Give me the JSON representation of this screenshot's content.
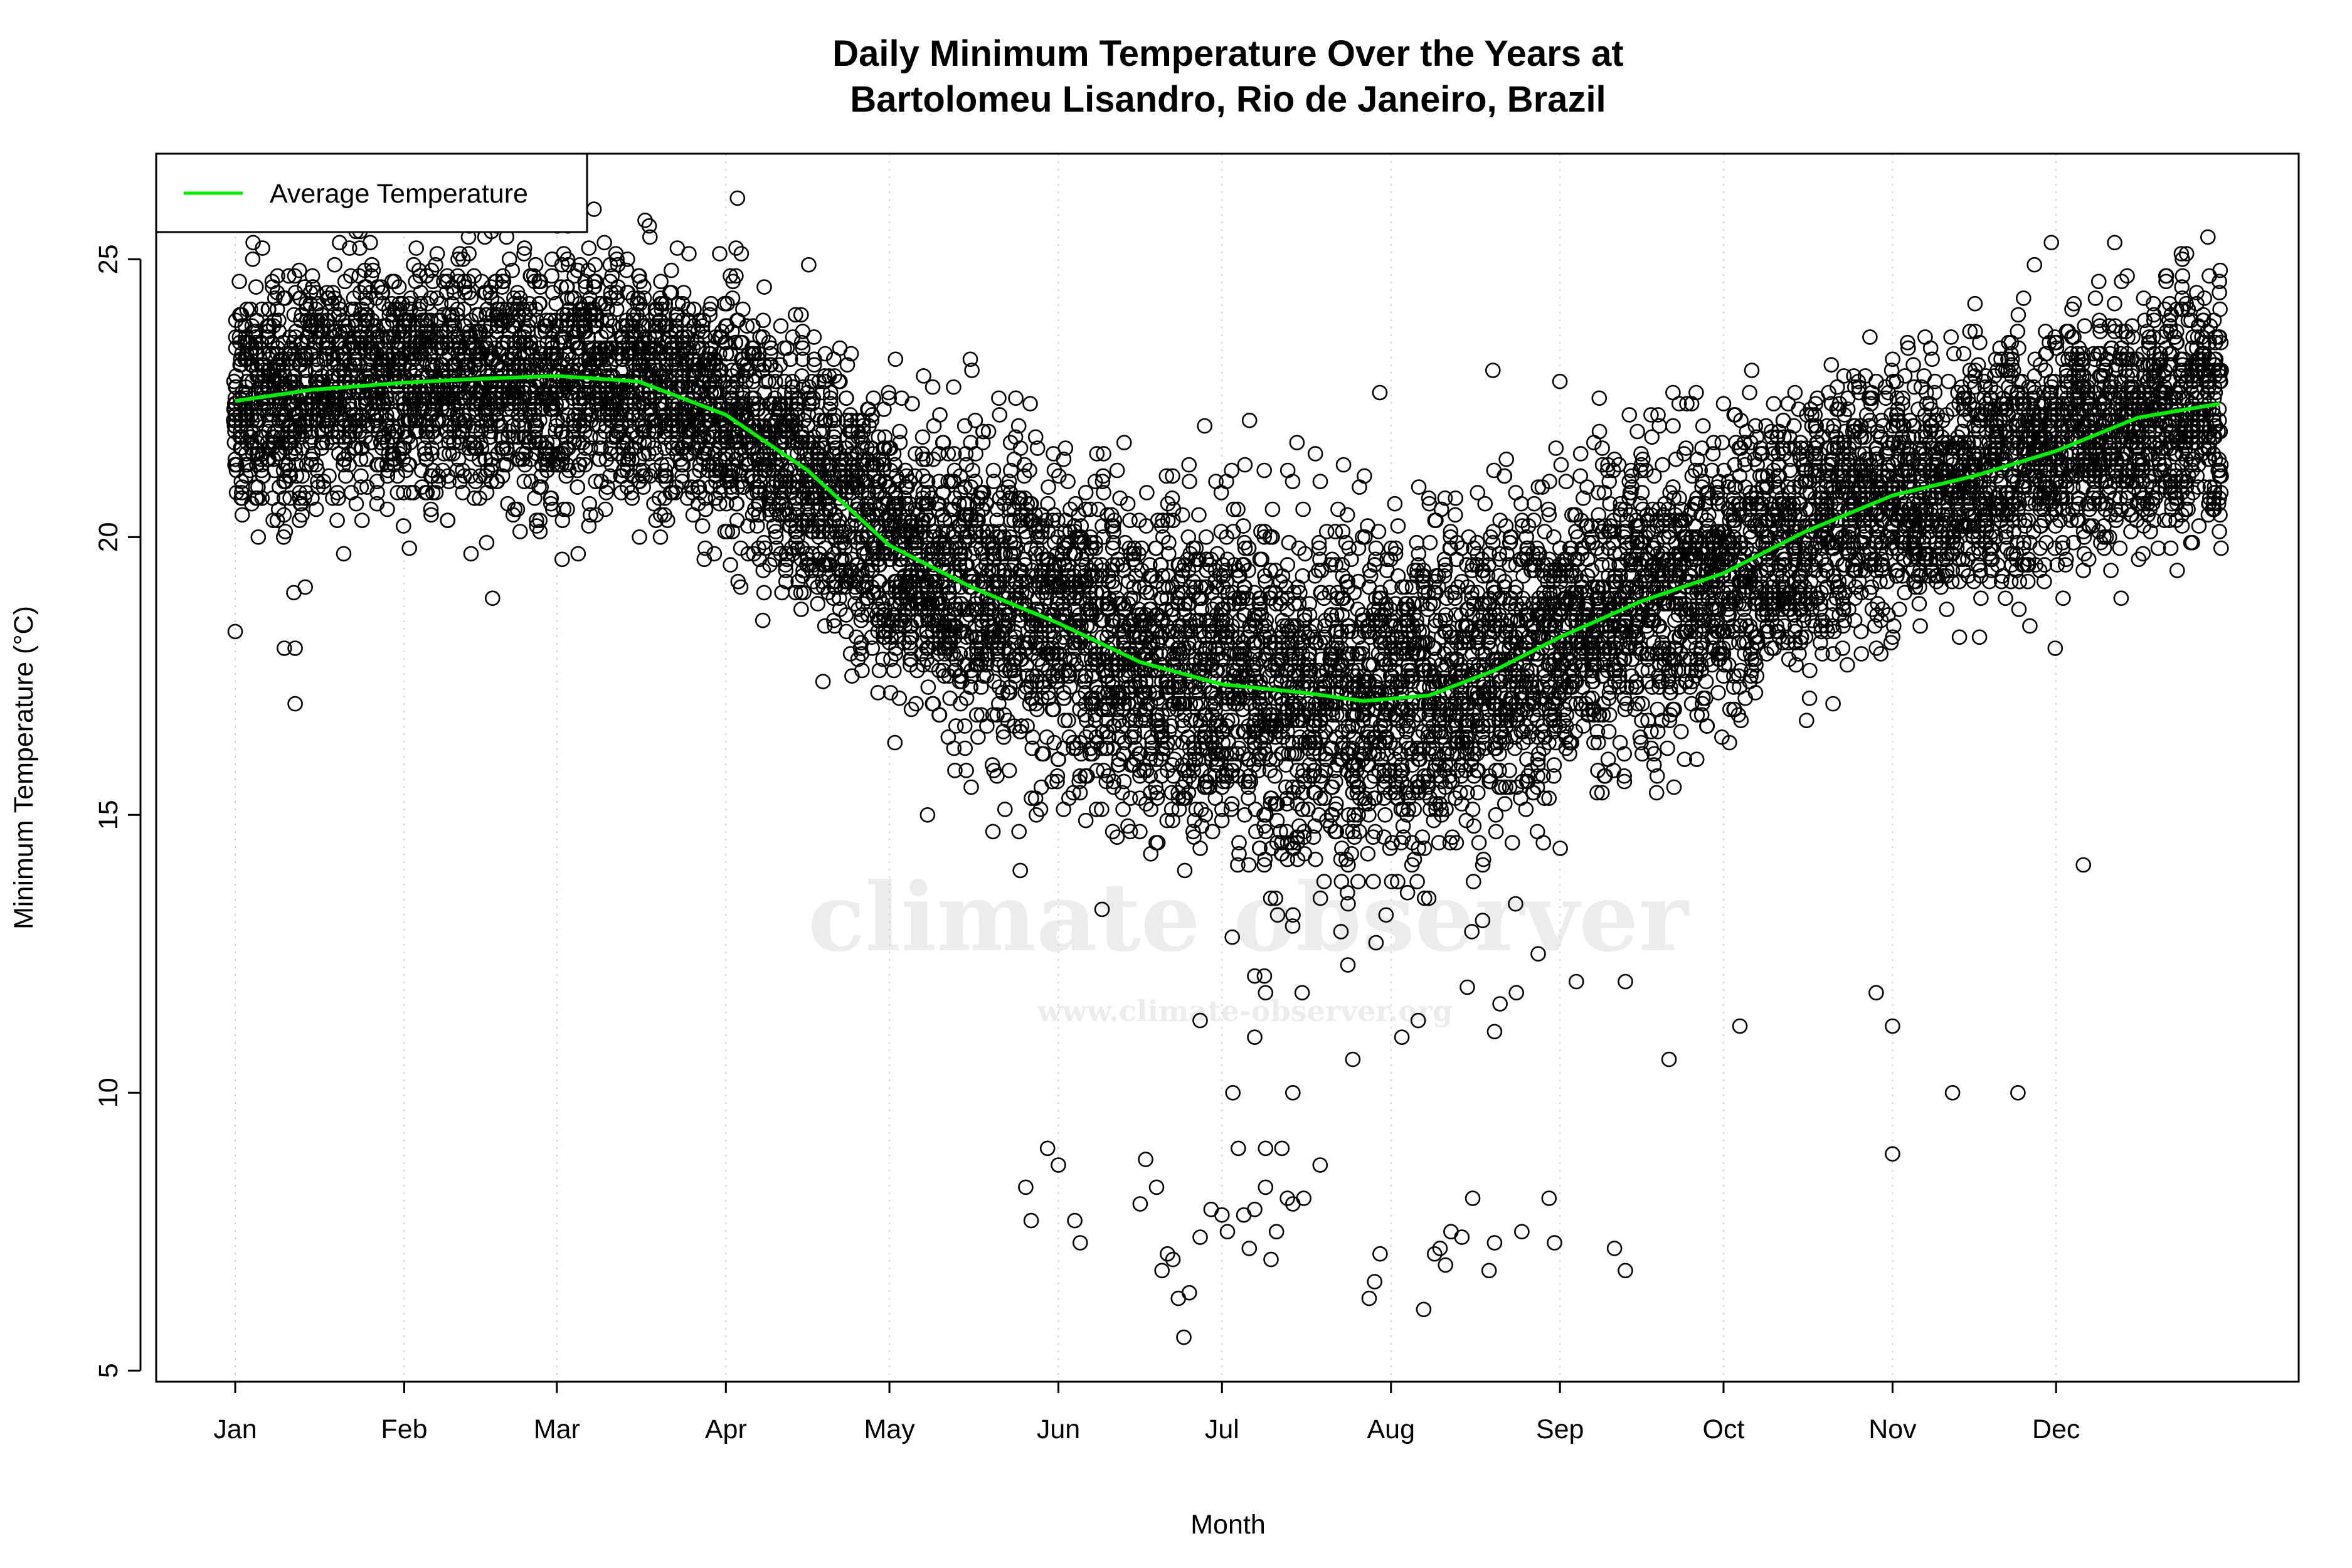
{
  "chart_data": {
    "type": "scatter",
    "title_line1": "Daily Minimum Temperature Over the Years at",
    "title_line2": "Bartolomeu Lisandro, Rio de Janeiro, Brazil",
    "xlabel": "Month",
    "ylabel": "Minimum Temperature (°C)",
    "x_ticks": [
      {
        "label": "Jan",
        "day": 1
      },
      {
        "label": "Feb",
        "day": 32
      },
      {
        "label": "Mar",
        "day": 60
      },
      {
        "label": "Apr",
        "day": 91
      },
      {
        "label": "May",
        "day": 121
      },
      {
        "label": "Jun",
        "day": 152
      },
      {
        "label": "Jul",
        "day": 182
      },
      {
        "label": "Aug",
        "day": 213
      },
      {
        "label": "Sep",
        "day": 244
      },
      {
        "label": "Oct",
        "day": 274
      },
      {
        "label": "Nov",
        "day": 305
      },
      {
        "label": "Dec",
        "day": 335
      }
    ],
    "y_ticks": [
      5,
      10,
      15,
      20,
      25
    ],
    "xlim": [
      -13.5,
      379.5
    ],
    "ylim": [
      4.8,
      26.9
    ],
    "grid": "vertical dotted at month ticks",
    "legend": {
      "placement": "top-left",
      "entries": [
        {
          "label": "Average Temperature",
          "color": "#00ee00"
        }
      ]
    },
    "series": [
      {
        "name": "Average Temperature",
        "kind": "line",
        "color": "#00ee00",
        "x": [
          1,
          15,
          32,
          46,
          60,
          75,
          91,
          106,
          121,
          136,
          152,
          167,
          182,
          197,
          208,
          220,
          232,
          244,
          259,
          274,
          289,
          305,
          320,
          335,
          350,
          365
        ],
        "y": [
          22.45,
          22.65,
          22.78,
          22.85,
          22.9,
          22.8,
          22.2,
          21.2,
          19.85,
          19.1,
          18.45,
          17.75,
          17.35,
          17.2,
          17.05,
          17.15,
          17.6,
          18.2,
          18.85,
          19.35,
          20.1,
          20.75,
          21.1,
          21.55,
          22.15,
          22.4
        ]
      },
      {
        "kind": "scatter",
        "marker": "open-circle",
        "color": "#000000",
        "years_per_day_approx": 30,
        "outliers": [
          [
            1,
            18.3
          ],
          [
            10,
            18.0
          ],
          [
            12,
            18.0
          ],
          [
            12,
            17.0
          ],
          [
            128,
            15.0
          ],
          [
            136,
            15.5
          ],
          [
            140,
            14.7
          ],
          [
            145,
            14.0
          ],
          [
            146,
            8.3
          ],
          [
            147,
            7.7
          ],
          [
            150,
            9.0
          ],
          [
            152,
            8.7
          ],
          [
            155,
            7.7
          ],
          [
            156,
            7.3
          ],
          [
            160,
            13.3
          ],
          [
            167,
            8.0
          ],
          [
            168,
            8.8
          ],
          [
            170,
            8.3
          ],
          [
            171,
            6.8
          ],
          [
            172,
            7.1
          ],
          [
            173,
            7.0
          ],
          [
            174,
            6.3
          ],
          [
            175,
            5.6
          ],
          [
            176,
            6.4
          ],
          [
            178,
            7.4
          ],
          [
            180,
            7.9
          ],
          [
            182,
            7.8
          ],
          [
            183,
            7.5
          ],
          [
            185,
            9.0
          ],
          [
            186,
            7.8
          ],
          [
            187,
            7.2
          ],
          [
            188,
            7.9
          ],
          [
            190,
            9.0
          ],
          [
            190,
            8.3
          ],
          [
            191,
            7.0
          ],
          [
            192,
            7.5
          ],
          [
            193,
            9.0
          ],
          [
            194,
            8.1
          ],
          [
            195,
            8.0
          ],
          [
            197,
            8.1
          ],
          [
            195,
            10.0
          ],
          [
            188,
            12.1
          ],
          [
            178,
            11.3
          ],
          [
            184,
            10.0
          ],
          [
            188,
            11.0
          ],
          [
            190,
            11.8
          ],
          [
            200,
            8.7
          ],
          [
            206,
            10.6
          ],
          [
            209,
            6.3
          ],
          [
            210,
            6.6
          ],
          [
            211,
            7.1
          ],
          [
            215,
            11.0
          ],
          [
            218,
            11.3
          ],
          [
            219,
            6.1
          ],
          [
            221,
            7.1
          ],
          [
            222,
            7.2
          ],
          [
            223,
            6.9
          ],
          [
            224,
            7.5
          ],
          [
            226,
            7.4
          ],
          [
            227,
            11.9
          ],
          [
            228,
            8.1
          ],
          [
            231,
            6.8
          ],
          [
            232,
            7.3
          ],
          [
            232,
            11.1
          ],
          [
            233,
            11.6
          ],
          [
            236,
            11.8
          ],
          [
            237,
            7.5
          ],
          [
            240,
            12.5
          ],
          [
            242,
            8.1
          ],
          [
            243,
            7.3
          ],
          [
            247,
            12.0
          ],
          [
            254,
            7.2
          ],
          [
            256,
            6.8
          ],
          [
            256,
            12.0
          ],
          [
            264,
            10.6
          ],
          [
            277,
            11.2
          ],
          [
            302,
            11.8
          ],
          [
            305,
            11.2
          ],
          [
            305,
            8.9
          ],
          [
            316,
            10.0
          ],
          [
            328,
            10.0
          ],
          [
            340,
            14.1
          ]
        ]
      }
    ],
    "watermark": {
      "line1": "climate observer",
      "line2": "www.climate-observer.org"
    }
  }
}
